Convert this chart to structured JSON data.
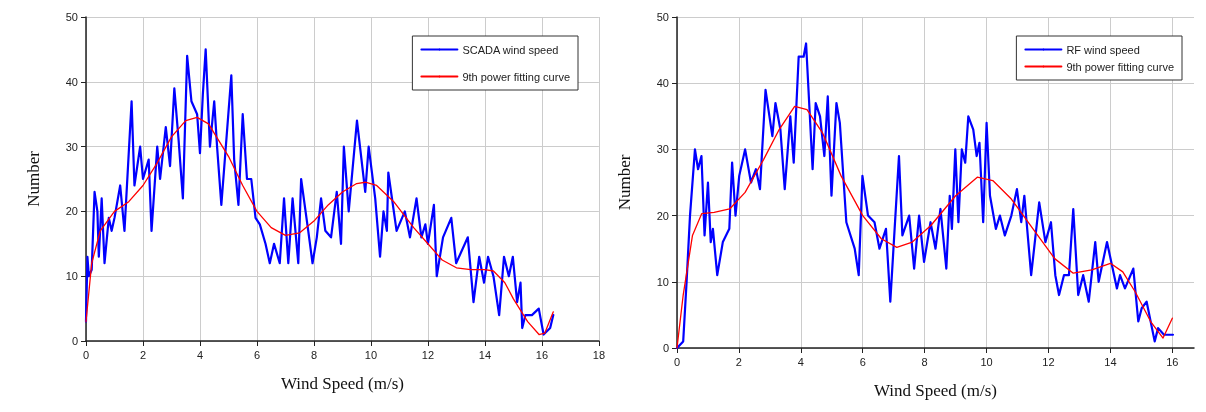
{
  "chart_data": [
    {
      "type": "line",
      "xlabel": "Wind Speed (m/s)",
      "ylabel": "Number",
      "xlim": [
        0,
        18
      ],
      "xticks": [
        0,
        2,
        4,
        6,
        8,
        10,
        12,
        14,
        16,
        18
      ],
      "ylim": [
        0,
        50
      ],
      "yticks": [
        0,
        10,
        20,
        30,
        40,
        50
      ],
      "grid": true,
      "legend": "top right",
      "marker": "none",
      "line_style": "solid",
      "series": [
        {
          "name": "SCADA wind speed",
          "color": "#0000ff",
          "x": [
            0,
            0.05,
            0.1,
            0.2,
            0.3,
            0.4,
            0.45,
            0.55,
            0.65,
            0.8,
            0.9,
            1.0,
            1.2,
            1.35,
            1.6,
            1.7,
            1.9,
            2.0,
            2.2,
            2.3,
            2.5,
            2.6,
            2.8,
            2.95,
            3.1,
            3.25,
            3.4,
            3.55,
            3.7,
            3.9,
            4.0,
            4.1,
            4.2,
            4.35,
            4.5,
            4.6,
            4.75,
            5.1,
            5.2,
            5.35,
            5.5,
            5.65,
            5.8,
            5.95,
            6.1,
            6.3,
            6.45,
            6.6,
            6.8,
            6.95,
            7.1,
            7.25,
            7.45,
            7.55,
            7.8,
            7.95,
            8.1,
            8.25,
            8.4,
            8.6,
            8.8,
            8.95,
            9.05,
            9.22,
            9.51,
            9.8,
            9.92,
            10.15,
            10.32,
            10.44,
            10.56,
            10.61,
            10.9,
            11.19,
            11.37,
            11.6,
            11.77,
            11.91,
            12.0,
            12.21,
            12.31,
            12.53,
            12.82,
            12.99,
            13.4,
            13.6,
            13.8,
            13.97,
            14.11,
            14.3,
            14.5,
            14.67,
            14.84,
            14.98,
            15.13,
            15.25,
            15.31,
            15.42,
            15.65,
            15.89,
            16.06,
            16.29,
            16.4
          ],
          "values": [
            3,
            13,
            10,
            11,
            23,
            20,
            13,
            22,
            12,
            19,
            17,
            19,
            24,
            17,
            37,
            24,
            30,
            25,
            28,
            17,
            30,
            25,
            33,
            27,
            39,
            31,
            22,
            44,
            37,
            35,
            29,
            38,
            45,
            30,
            37,
            30,
            21,
            41,
            28,
            21,
            35,
            25,
            25,
            19,
            18,
            15,
            12,
            15,
            12,
            22,
            12,
            22,
            12,
            25,
            17,
            12,
            16,
            22,
            17,
            16,
            23,
            15,
            30,
            20,
            34,
            23,
            30,
            22,
            13,
            20,
            17,
            26,
            17,
            20,
            16,
            22,
            16,
            18,
            15,
            21,
            10,
            16,
            19,
            12,
            16,
            6,
            13,
            9,
            13,
            10,
            4,
            13,
            10,
            13,
            6,
            9,
            2,
            4,
            4,
            5,
            1,
            2,
            4
          ]
        },
        {
          "name": "9th power fitting curve",
          "color": "#ff0000",
          "x": [
            0,
            0.2,
            0.5,
            1,
            1.5,
            2,
            2.5,
            3,
            3.5,
            3.9,
            4.3,
            5,
            5.5,
            6,
            6.5,
            7,
            7.5,
            8,
            8.5,
            9,
            9.5,
            9.8,
            10.2,
            10.8,
            11.5,
            12,
            12.5,
            13,
            13.5,
            14,
            14.3,
            14.7,
            15,
            15.5,
            15.9,
            16.1,
            16.4
          ],
          "values": [
            3,
            12,
            17,
            20,
            21.5,
            24,
            27.5,
            31.5,
            34,
            34.5,
            33.5,
            28.5,
            24,
            20,
            17.5,
            16.3,
            16.7,
            18.5,
            21,
            23,
            24.3,
            24.5,
            24,
            21.5,
            17.5,
            15,
            12.5,
            11.3,
            11,
            11,
            10.8,
            9,
            6.5,
            3,
            1,
            1.2,
            4.5
          ]
        }
      ]
    },
    {
      "type": "line",
      "xlabel": "Wind Speed (m/s)",
      "ylabel": "Number",
      "xlim": [
        0,
        16.7
      ],
      "xticks": [
        0,
        2,
        4,
        6,
        8,
        10,
        12,
        14,
        16
      ],
      "ylim": [
        0,
        50
      ],
      "yticks": [
        0,
        10,
        20,
        30,
        40,
        50
      ],
      "grid": true,
      "legend": "top right",
      "marker": "none",
      "line_style": "solid",
      "series": [
        {
          "name": "RF wind speed",
          "color": "#0000ff",
          "x": [
            0,
            0.2,
            0.31,
            0.42,
            0.58,
            0.68,
            0.79,
            0.89,
            1.0,
            1.09,
            1.16,
            1.3,
            1.48,
            1.69,
            1.78,
            1.89,
            2.01,
            2.2,
            2.39,
            2.55,
            2.68,
            2.86,
            3.08,
            3.18,
            3.34,
            3.48,
            3.66,
            3.77,
            3.93,
            4.09,
            4.17,
            4.38,
            4.48,
            4.62,
            4.76,
            4.87,
            4.99,
            5.15,
            5.26,
            5.47,
            5.74,
            5.87,
            5.99,
            6.17,
            6.38,
            6.54,
            6.75,
            6.89,
            7.17,
            7.28,
            7.5,
            7.66,
            7.82,
            7.98,
            8.19,
            8.35,
            8.51,
            8.7,
            8.81,
            8.88,
            8.99,
            9.09,
            9.2,
            9.31,
            9.41,
            9.57,
            9.68,
            9.77,
            9.89,
            10,
            10.11,
            10.3,
            10.43,
            10.59,
            10.8,
            10.98,
            11.12,
            11.22,
            11.44,
            11.7,
            11.9,
            12.08,
            12.22,
            12.34,
            12.5,
            12.66,
            12.8,
            12.96,
            13.12,
            13.3,
            13.51,
            13.62,
            13.89,
            14.21,
            14.31,
            14.47,
            14.74,
            14.9,
            15.01,
            15.17,
            15.43,
            15.54,
            15.73,
            16.02
          ],
          "values": [
            0,
            1,
            10,
            20,
            30,
            27,
            29,
            17,
            25,
            16,
            18,
            11,
            16,
            18,
            28,
            20,
            26,
            30,
            25,
            27,
            24,
            39,
            32,
            37,
            33,
            24,
            35,
            28,
            44,
            44,
            46,
            27,
            37,
            35,
            29,
            38,
            23,
            37,
            34,
            19,
            15,
            11,
            26,
            20,
            19,
            15,
            18,
            7,
            29,
            17,
            20,
            12,
            20,
            13,
            19,
            15,
            21,
            12,
            23,
            18,
            30,
            19,
            30,
            28,
            35,
            33,
            29,
            31,
            19,
            34,
            23,
            18,
            20,
            17,
            20,
            24,
            19,
            23,
            11,
            22,
            16,
            19,
            11,
            8,
            11,
            11,
            21,
            8,
            11,
            7,
            16,
            10,
            16,
            9,
            11,
            9,
            12,
            4,
            6,
            7,
            1,
            3,
            2,
            2
          ]
        },
        {
          "name": "9th power fitting curve",
          "color": "#ff0000",
          "x": [
            0,
            0.2,
            0.5,
            0.8,
            1.2,
            1.7,
            2.2,
            2.8,
            3.3,
            3.8,
            4.2,
            4.7,
            5.3,
            6,
            6.6,
            7.1,
            7.6,
            8.2,
            9,
            9.7,
            10.2,
            10.8,
            11.5,
            12.2,
            12.8,
            13.4,
            14,
            14.4,
            14.8,
            15.3,
            15.7,
            16
          ],
          "values": [
            0,
            8,
            17,
            20.3,
            20.5,
            21,
            23.5,
            28.5,
            33,
            36.5,
            36,
            32.5,
            26,
            20,
            16.5,
            15.2,
            16,
            18.5,
            23,
            25.8,
            25.3,
            22.5,
            18,
            13.5,
            11.3,
            11.8,
            12.8,
            11.5,
            8.5,
            4,
            1.5,
            4.5
          ]
        }
      ]
    }
  ]
}
